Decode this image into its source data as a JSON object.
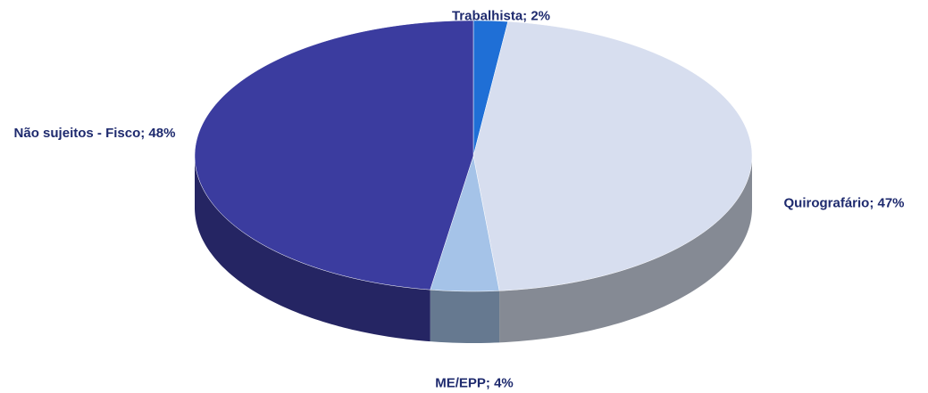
{
  "chart_data": {
    "type": "pie3d",
    "values": [
      2,
      47,
      4,
      48
    ],
    "value_labels": [
      "Trabalhista; 2%",
      "Quirografário; 47%",
      "ME/EPP; 4%",
      "Não sujeitos - Fisco; 48%"
    ],
    "colors": [
      "#1f6fd6",
      "#d7deef",
      "#a5c3e8",
      "#3b3c9f"
    ]
  }
}
